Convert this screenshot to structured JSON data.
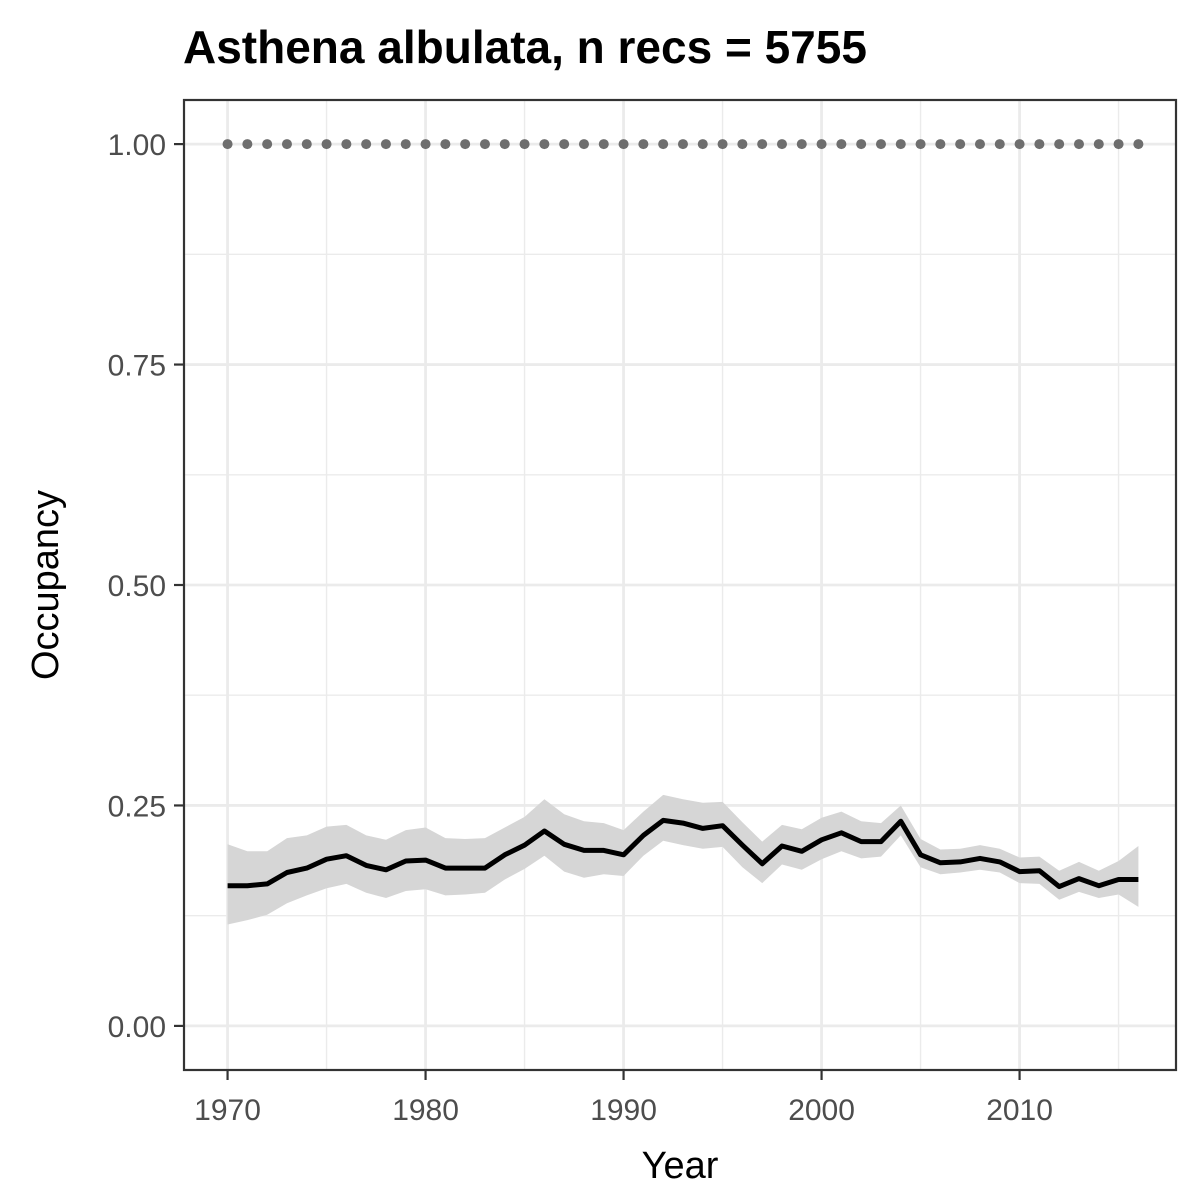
{
  "chart_data": {
    "type": "line",
    "title": "Asthena albulata, n recs = 5755",
    "xlabel": "Year",
    "ylabel": "Occupancy",
    "xlim": [
      1967.8,
      2017.9
    ],
    "ylim": [
      -0.05,
      1.05
    ],
    "x_ticks": [
      1970,
      1980,
      1990,
      2000,
      2010
    ],
    "y_ticks": [
      0.0,
      0.25,
      0.5,
      0.75,
      1.0
    ],
    "x_tick_labels": [
      "1970",
      "1980",
      "1990",
      "2000",
      "2010"
    ],
    "y_tick_labels": [
      "0.00",
      "0.25",
      "0.50",
      "0.75",
      "1.00"
    ],
    "x_minor_ticks": [
      1975,
      1985,
      1995,
      2005,
      2015
    ],
    "y_minor_ticks": [
      0.125,
      0.375,
      0.625,
      0.875
    ],
    "grid": true,
    "legend": "none",
    "colors": {
      "line": "#000000",
      "ribbon": "#d6d6d6",
      "dots": "#6e6e6e",
      "grid": "#ebebeb",
      "panel_border": "#333333",
      "tick_text": "#4d4d4d"
    },
    "x": [
      1970,
      1971,
      1972,
      1973,
      1974,
      1975,
      1976,
      1977,
      1978,
      1979,
      1980,
      1981,
      1982,
      1983,
      1984,
      1985,
      1986,
      1987,
      1988,
      1989,
      1990,
      1991,
      1992,
      1993,
      1994,
      1995,
      1996,
      1997,
      1998,
      1999,
      2000,
      2001,
      2002,
      2003,
      2004,
      2005,
      2006,
      2007,
      2008,
      2009,
      2010,
      2011,
      2012,
      2013,
      2014,
      2015,
      2016
    ],
    "series": [
      {
        "values": [
          0.159,
          0.159,
          0.161,
          0.174,
          0.179,
          0.189,
          0.193,
          0.182,
          0.177,
          0.187,
          0.188,
          0.179,
          0.179,
          0.179,
          0.194,
          0.205,
          0.221,
          0.206,
          0.199,
          0.199,
          0.194,
          0.216,
          0.233,
          0.23,
          0.224,
          0.227,
          0.205,
          0.184,
          0.204,
          0.198,
          0.211,
          0.219,
          0.209,
          0.209,
          0.232,
          0.194,
          0.185,
          0.186,
          0.19,
          0.186,
          0.175,
          0.176,
          0.158,
          0.167,
          0.159,
          0.166,
          0.166
        ],
        "lower": [
          0.115,
          0.12,
          0.126,
          0.139,
          0.148,
          0.156,
          0.161,
          0.151,
          0.145,
          0.153,
          0.155,
          0.148,
          0.149,
          0.151,
          0.166,
          0.178,
          0.193,
          0.175,
          0.168,
          0.172,
          0.17,
          0.193,
          0.21,
          0.205,
          0.201,
          0.203,
          0.18,
          0.162,
          0.183,
          0.177,
          0.189,
          0.198,
          0.19,
          0.192,
          0.216,
          0.18,
          0.172,
          0.174,
          0.177,
          0.174,
          0.162,
          0.161,
          0.143,
          0.152,
          0.145,
          0.149,
          0.135
        ],
        "upper": [
          0.206,
          0.198,
          0.198,
          0.213,
          0.216,
          0.226,
          0.228,
          0.216,
          0.211,
          0.222,
          0.225,
          0.213,
          0.212,
          0.213,
          0.225,
          0.237,
          0.257,
          0.24,
          0.232,
          0.23,
          0.222,
          0.243,
          0.262,
          0.257,
          0.253,
          0.254,
          0.231,
          0.209,
          0.228,
          0.223,
          0.236,
          0.243,
          0.232,
          0.23,
          0.25,
          0.212,
          0.2,
          0.201,
          0.205,
          0.201,
          0.191,
          0.192,
          0.176,
          0.186,
          0.176,
          0.187,
          0.204
        ]
      },
      {
        "values": [
          1,
          1,
          1,
          1,
          1,
          1,
          1,
          1,
          1,
          1,
          1,
          1,
          1,
          1,
          1,
          1,
          1,
          1,
          1,
          1,
          1,
          1,
          1,
          1,
          1,
          1,
          1,
          1,
          1,
          1,
          1,
          1,
          1,
          1,
          1,
          1,
          1,
          1,
          1,
          1,
          1,
          1,
          1,
          1,
          1,
          1,
          1
        ]
      }
    ]
  }
}
